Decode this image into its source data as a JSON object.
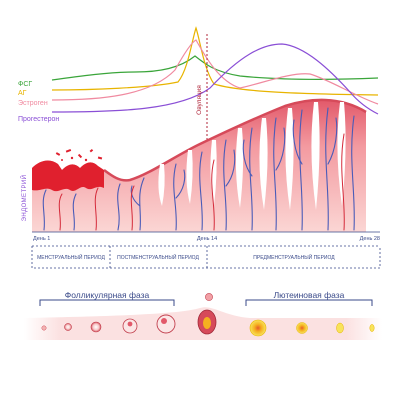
{
  "hormones": {
    "fsh": {
      "label": "ФСГ",
      "color": "#3aa53a"
    },
    "lh": {
      "label": "АГ",
      "color": "#e8b400"
    },
    "estrogen": {
      "label": "Эстроген",
      "color": "#f08aa0"
    },
    "progesterone": {
      "label": "Прогестерон",
      "color": "#8a4fd6"
    }
  },
  "ovulation_label": "Овуляция",
  "endometrium_label": "ЭНДОМЕТРИЙ",
  "days": {
    "day1": "День 1",
    "day14": "День 14",
    "day28": "День 28"
  },
  "periods": {
    "menstrual": "МЕНСТРУАЛЬНЫЙ ПЕРИОД",
    "postmenstrual": "ПОСТМЕНСТРУАЛЬНЫЙ ПЕРИОД",
    "premenstrual": "ПРЕДМЕНСТРУАЛЬНЫЙ ПЕРИОД"
  },
  "phases": {
    "follicular": "Фолликулярная фаза",
    "luteal": "Лютеиновая фаза"
  },
  "colors": {
    "tissue": "#f6b8b6",
    "tissue_dark": "#d64a5a",
    "blood": "#e0202e",
    "vein": "#4a5bb8",
    "dashed": "#3a4a8a",
    "ovary_band": "#fbe3e3",
    "corpus_luteum": "#f5d020"
  }
}
